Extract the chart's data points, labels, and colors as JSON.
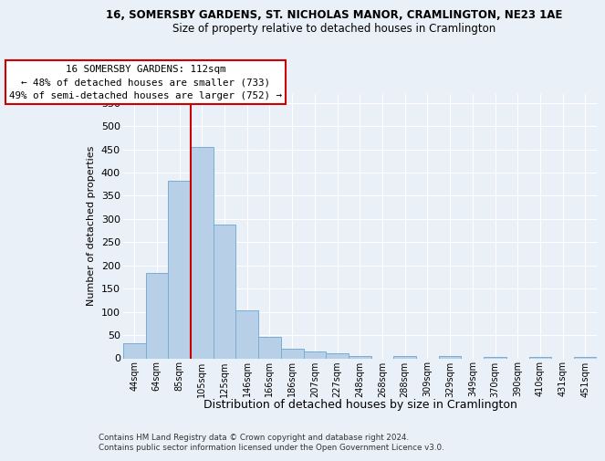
{
  "title1": "16, SOMERSBY GARDENS, ST. NICHOLAS MANOR, CRAMLINGTON, NE23 1AE",
  "title2": "Size of property relative to detached houses in Cramlington",
  "xlabel": "Distribution of detached houses by size in Cramlington",
  "ylabel": "Number of detached properties",
  "categories": [
    "44sqm",
    "64sqm",
    "85sqm",
    "105sqm",
    "125sqm",
    "146sqm",
    "166sqm",
    "186sqm",
    "207sqm",
    "227sqm",
    "248sqm",
    "268sqm",
    "288sqm",
    "309sqm",
    "329sqm",
    "349sqm",
    "370sqm",
    "390sqm",
    "410sqm",
    "431sqm",
    "451sqm"
  ],
  "values": [
    33,
    183,
    383,
    456,
    287,
    103,
    47,
    20,
    14,
    10,
    5,
    0,
    4,
    0,
    4,
    0,
    3,
    0,
    3,
    0,
    3
  ],
  "bar_color": "#b8cfe8",
  "bar_edge_color": "#7aadd4",
  "highlight_color": "#cc0000",
  "annotation_text": "16 SOMERSBY GARDENS: 112sqm\n← 48% of detached houses are smaller (733)\n49% of semi-detached houses are larger (752) →",
  "annotation_box_color": "#ffffff",
  "annotation_box_edge": "#cc0000",
  "ylim": [
    0,
    570
  ],
  "yticks": [
    0,
    50,
    100,
    150,
    200,
    250,
    300,
    350,
    400,
    450,
    500,
    550
  ],
  "footnote1": "Contains HM Land Registry data © Crown copyright and database right 2024.",
  "footnote2": "Contains public sector information licensed under the Open Government Licence v3.0.",
  "bg_color": "#eaf0f8",
  "grid_color": "#ffffff"
}
